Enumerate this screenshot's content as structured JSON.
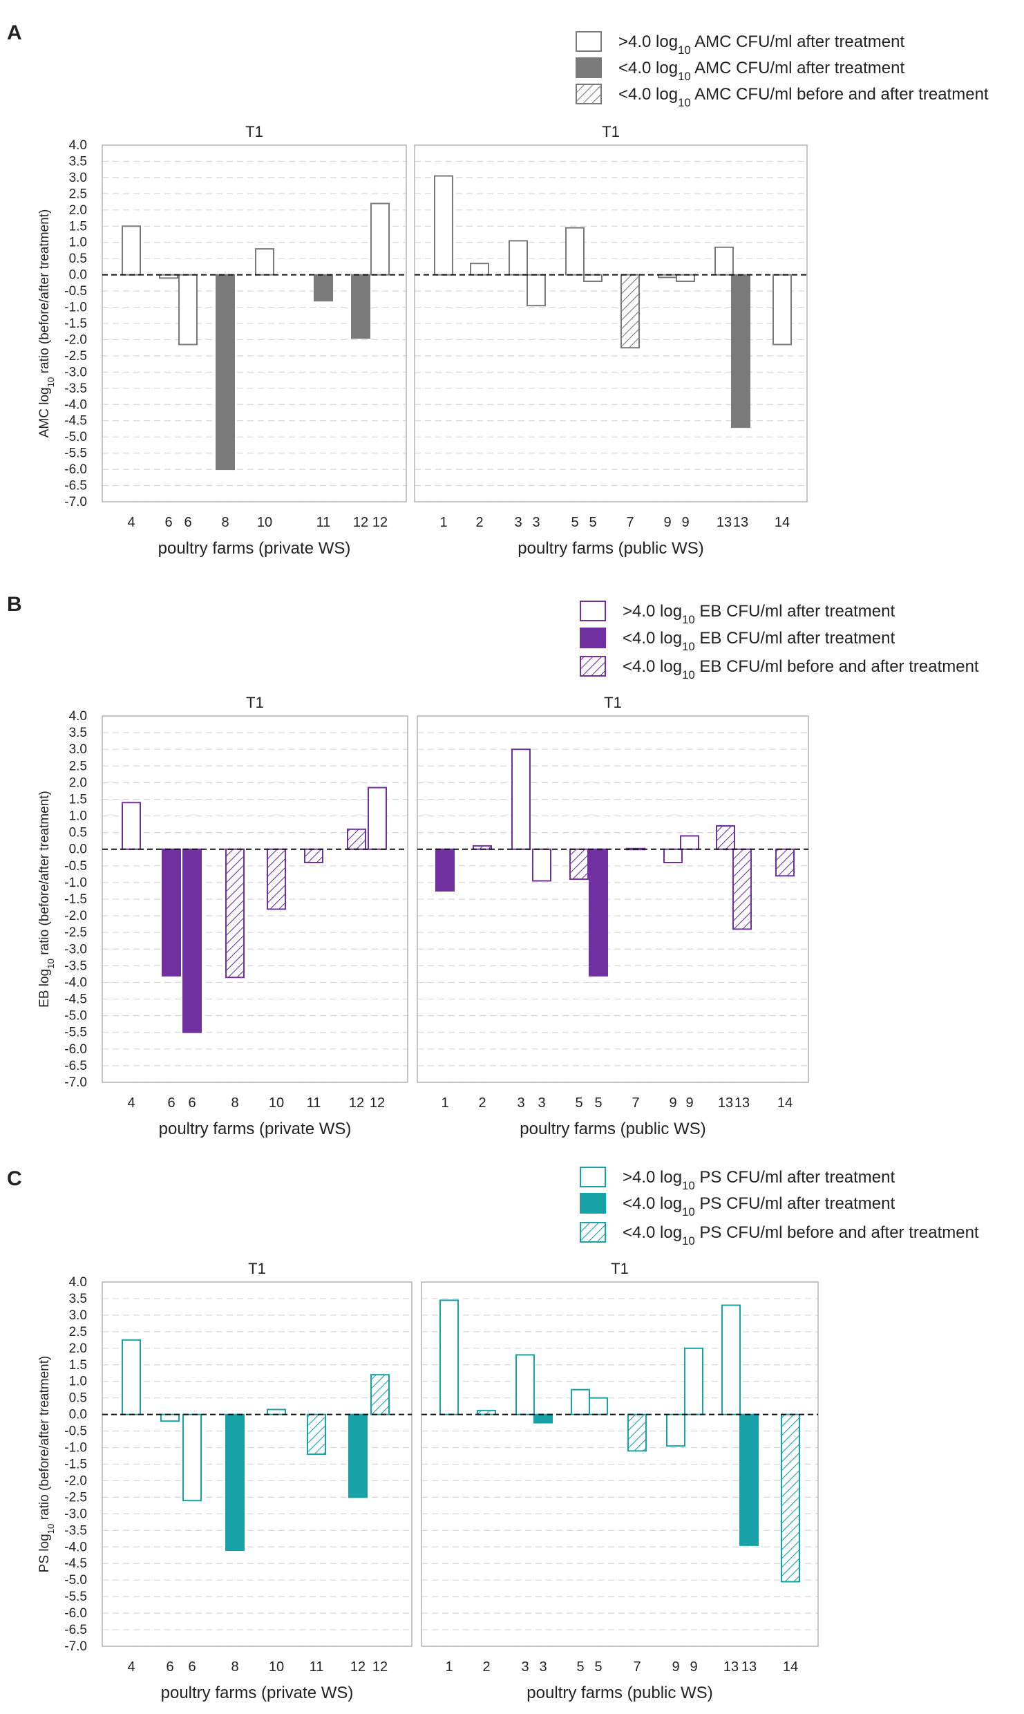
{
  "chart_data": [
    {
      "type": "bar",
      "panel": "A",
      "ylabel": {
        "pre": "AMC log",
        "sub": "10",
        "post": " ratio (before/after treatment)"
      },
      "ylim": [
        -7.0,
        4.0
      ],
      "yticks": [
        "4.0",
        "3.5",
        "3.0",
        "2.5",
        "2.0",
        "1.5",
        "1.0",
        "0.5",
        "0.0",
        "-0.5",
        "-1.0",
        "-1.5",
        "-2.0",
        "-2.5",
        "-3.0",
        "-3.5",
        "-4.0",
        "-4.5",
        "-5.0",
        "-5.5",
        "-6.0",
        "-6.5",
        "-7.0"
      ],
      "color": "#7a7a7a",
      "legend": [
        {
          "style": "open",
          "pre": ">4.0 log",
          "sub": "10",
          "post": " AMC CFU/ml after treatment"
        },
        {
          "style": "filled",
          "pre": "<4.0 log",
          "sub": "10",
          "post": " AMC CFU/ml after treatment"
        },
        {
          "style": "hatched",
          "pre": "<4.0 log",
          "sub": "10",
          "post": " AMC CFU/ml before and after treatment"
        }
      ],
      "subplots": [
        {
          "title": "T1",
          "xlabel": "poultry farms (private WS)",
          "categories": [
            "4",
            "6",
            "6",
            "8",
            "10",
            "11",
            "12",
            "12"
          ],
          "values": [
            1.5,
            -0.1,
            -2.15,
            -6.0,
            0.8,
            -0.8,
            -1.95,
            2.2
          ],
          "styles": [
            "open",
            "open",
            "open",
            "filled",
            "open",
            "filled",
            "filled",
            "open"
          ]
        },
        {
          "title": "T1",
          "xlabel": "poultry farms (public WS)",
          "categories": [
            "1",
            "2",
            "3",
            "3",
            "5",
            "5",
            "7",
            "9",
            "9",
            "13",
            "13",
            "14"
          ],
          "values": [
            3.05,
            0.35,
            1.05,
            -0.95,
            1.45,
            -0.2,
            -2.25,
            -0.08,
            -0.2,
            0.85,
            -4.7,
            -2.15
          ],
          "styles": [
            "open",
            "open",
            "open",
            "open",
            "open",
            "open",
            "hatched",
            "open",
            "open",
            "open",
            "filled",
            "open"
          ]
        }
      ]
    },
    {
      "type": "bar",
      "panel": "B",
      "ylabel": {
        "pre": "EB log",
        "sub": "10",
        "post": " ratio (before/after treatment)"
      },
      "ylim": [
        -7.0,
        4.0
      ],
      "yticks": [
        "4.0",
        "3.5",
        "3.0",
        "2.5",
        "2.0",
        "1.5",
        "1.0",
        "0.5",
        "0.0",
        "-0.5",
        "-1.0",
        "-1.5",
        "-2.0",
        "-2.5",
        "-3.0",
        "-3.5",
        "-4.0",
        "-4.5",
        "-5.0",
        "-5.5",
        "-6.0",
        "-6.5",
        "-7.0"
      ],
      "color": "#7030a0",
      "legend": [
        {
          "style": "open",
          "pre": ">4.0 log",
          "sub": "10",
          "post": " EB CFU/ml after treatment"
        },
        {
          "style": "filled",
          "pre": "<4.0 log",
          "sub": "10",
          "post": " EB CFU/ml after treatment"
        },
        {
          "style": "hatched",
          "pre": "<4.0 log",
          "sub": "10",
          "post": " EB CFU/ml before and after treatment"
        }
      ],
      "subplots": [
        {
          "title": "T1",
          "xlabel": "poultry farms (private WS)",
          "categories": [
            "4",
            "6",
            "6",
            "8",
            "10",
            "11",
            "12",
            "12"
          ],
          "values": [
            1.4,
            -3.8,
            -5.5,
            -3.85,
            -1.8,
            -0.4,
            0.6,
            1.85
          ],
          "styles": [
            "open",
            "filled",
            "filled",
            "hatched",
            "hatched",
            "hatched",
            "hatched",
            "open"
          ]
        },
        {
          "title": "T1",
          "xlabel": "poultry farms (public WS)",
          "categories": [
            "1",
            "2",
            "3",
            "3",
            "5",
            "5",
            "7",
            "9",
            "9",
            "13",
            "13",
            "14"
          ],
          "values": [
            -1.25,
            0.1,
            3.0,
            -0.95,
            -0.9,
            -3.8,
            0.02,
            -0.4,
            0.4,
            0.7,
            -2.4,
            -0.8
          ],
          "styles": [
            "filled",
            "hatched",
            "open",
            "open",
            "hatched",
            "filled",
            "open",
            "open",
            "open",
            "hatched",
            "hatched",
            "hatched"
          ]
        }
      ]
    },
    {
      "type": "bar",
      "panel": "C",
      "ylabel": {
        "pre": "PS log",
        "sub": "10",
        "post": " ratio (before/after treatment)"
      },
      "ylim": [
        -7.0,
        4.0
      ],
      "yticks": [
        "4.0",
        "3.5",
        "3.0",
        "2.5",
        "2.0",
        "1.5",
        "1.0",
        "0.5",
        "0.0",
        "-0.5",
        "-1.0",
        "-1.5",
        "-2.0",
        "-2.5",
        "-3.0",
        "-3.5",
        "-4.0",
        "-4.5",
        "-5.0",
        "-5.5",
        "-6.0",
        "-6.5",
        "-7.0"
      ],
      "color": "#17a2a8",
      "legend": [
        {
          "style": "open",
          "pre": ">4.0 log",
          "sub": "10",
          "post": " PS CFU/ml after treatment"
        },
        {
          "style": "filled",
          "pre": "<4.0 log",
          "sub": "10",
          "post": " PS CFU/ml after treatment"
        },
        {
          "style": "hatched",
          "pre": "<4.0 log",
          "sub": "10",
          "post": " PS CFU/ml before and after treatment"
        }
      ],
      "subplots": [
        {
          "title": "T1",
          "xlabel": "poultry farms (private WS)",
          "categories": [
            "4",
            "6",
            "6",
            "8",
            "10",
            "11",
            "12",
            "12"
          ],
          "values": [
            2.25,
            -0.2,
            -2.6,
            -4.1,
            0.15,
            -1.2,
            -2.5,
            1.2
          ],
          "styles": [
            "open",
            "open",
            "open",
            "filled",
            "open",
            "hatched",
            "filled",
            "hatched"
          ]
        },
        {
          "title": "T1",
          "xlabel": "poultry farms (public WS)",
          "categories": [
            "1",
            "2",
            "3",
            "3",
            "5",
            "5",
            "7",
            "9",
            "9",
            "13",
            "13",
            "14"
          ],
          "values": [
            3.45,
            0.12,
            1.8,
            -0.25,
            0.75,
            0.5,
            -1.1,
            -0.95,
            2.0,
            3.3,
            -3.95,
            -5.05
          ],
          "styles": [
            "open",
            "hatched",
            "open",
            "filled",
            "open",
            "open",
            "hatched",
            "open",
            "open",
            "open",
            "filled",
            "hatched"
          ]
        }
      ]
    }
  ]
}
